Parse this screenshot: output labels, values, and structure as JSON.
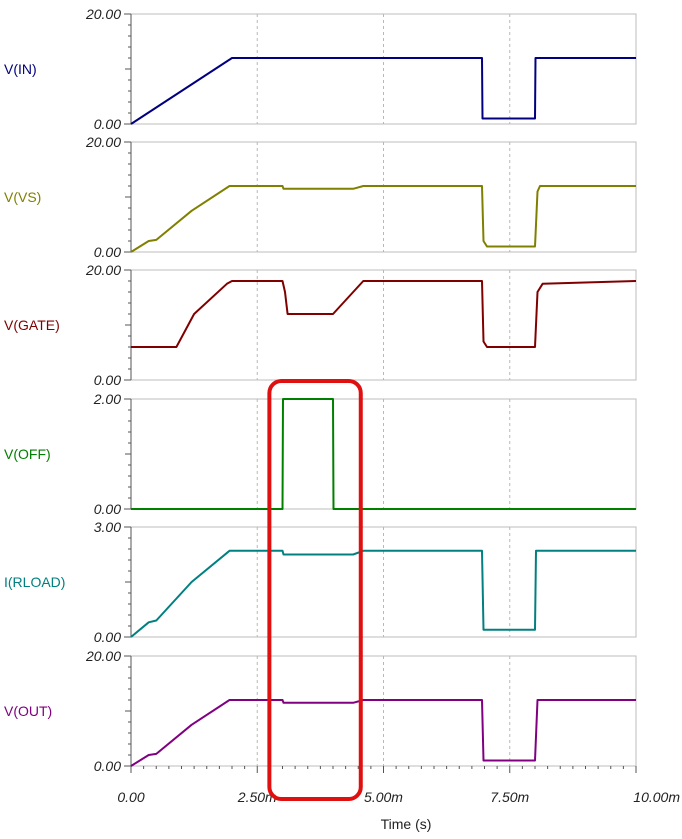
{
  "chart_data": {
    "type": "line",
    "xlabel": "Time (s)",
    "xlim": [
      0,
      10
    ],
    "x_ticks": [
      {
        "value": 0,
        "label": "0.00"
      },
      {
        "value": 2.5,
        "label": "2.50m"
      },
      {
        "value": 5,
        "label": "5.00m"
      },
      {
        "value": 7.5,
        "label": "7.50m"
      },
      {
        "value": 10,
        "label": "10.00m"
      }
    ],
    "highlight": {
      "x_range": [
        2.75,
        4.55
      ],
      "color": "#e01010"
    },
    "panels": [
      {
        "name": "V(IN)",
        "color": "#000080",
        "ylim": [
          0,
          20
        ],
        "y_tick_labels": [
          "20.00",
          "0.00"
        ],
        "x": [
          0,
          2,
          6.95,
          6.96,
          8.0,
          8.01,
          10
        ],
        "y": [
          0,
          12,
          12,
          1,
          1,
          12,
          12
        ]
      },
      {
        "name": "V(VS)",
        "color": "#808000",
        "ylim": [
          0,
          20
        ],
        "y_tick_labels": [
          "20.00",
          "0.00"
        ],
        "x": [
          0,
          0.35,
          0.5,
          1.2,
          1.95,
          3.0,
          3.02,
          4.4,
          4.6,
          6.95,
          6.98,
          7.05,
          8.0,
          8.05,
          8.1,
          10
        ],
        "y": [
          0,
          2,
          2.2,
          7.5,
          12,
          12,
          11.5,
          11.5,
          12,
          12,
          2,
          1,
          1,
          11,
          12,
          12
        ]
      },
      {
        "name": "V(GATE)",
        "color": "#800000",
        "ylim": [
          0,
          20
        ],
        "y_tick_labels": [
          "20.00",
          "0.00"
        ],
        "x": [
          0,
          0.9,
          1.25,
          1.9,
          2.0,
          3.0,
          3.05,
          3.1,
          4.0,
          4.6,
          6.95,
          6.98,
          7.05,
          8.0,
          8.05,
          8.15,
          10
        ],
        "y": [
          6,
          6,
          12,
          17.5,
          18,
          18,
          16,
          12,
          12,
          18,
          18,
          7,
          6,
          6,
          16,
          17.5,
          18
        ]
      },
      {
        "name": "V(OFF)",
        "color": "#008000",
        "ylim": [
          0,
          2
        ],
        "y_tick_labels": [
          "2.00",
          "0.00"
        ],
        "x": [
          0,
          3.0,
          3.01,
          4.0,
          4.01,
          10
        ],
        "y": [
          0,
          0,
          2,
          2,
          0,
          0
        ]
      },
      {
        "name": "I(RLOAD)",
        "color": "#008080",
        "ylim": [
          0,
          3
        ],
        "y_tick_labels": [
          "3.00",
          "0.00"
        ],
        "x": [
          0,
          0.35,
          0.5,
          1.2,
          1.95,
          3.0,
          3.02,
          4.4,
          4.6,
          6.95,
          6.98,
          8.0,
          8.02,
          10
        ],
        "y": [
          0,
          0.4,
          0.45,
          1.5,
          2.35,
          2.35,
          2.25,
          2.25,
          2.35,
          2.35,
          0.2,
          0.2,
          2.35,
          2.35
        ]
      },
      {
        "name": "V(OUT)",
        "color": "#800080",
        "ylim": [
          0,
          20
        ],
        "y_tick_labels": [
          "20.00",
          "0.00"
        ],
        "x": [
          0,
          0.35,
          0.5,
          1.2,
          1.95,
          3.0,
          3.02,
          4.4,
          4.6,
          6.95,
          6.98,
          8.0,
          8.05,
          10
        ],
        "y": [
          0,
          2,
          2.2,
          7.5,
          12,
          12,
          11.5,
          11.5,
          12,
          12,
          1,
          1,
          12,
          12
        ]
      }
    ]
  }
}
